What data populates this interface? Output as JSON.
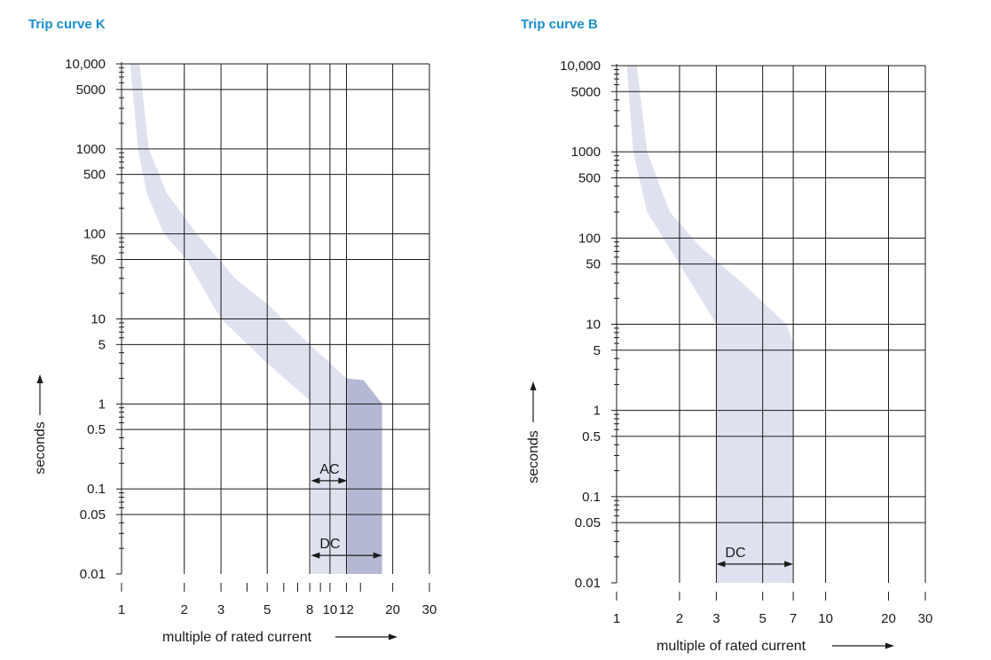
{
  "chart_data": [
    {
      "type": "area",
      "title": "Trip curve K",
      "xlabel": "multiple of rated current",
      "ylabel": "seconds",
      "x_scale": "log",
      "y_scale": "log",
      "xlim": [
        1,
        30
      ],
      "ylim": [
        0.01,
        10000
      ],
      "x_ticks": [
        1,
        2,
        3,
        5,
        8,
        10,
        12,
        20,
        30
      ],
      "x_tick_labels": [
        "1",
        "2",
        "3",
        "5",
        "8",
        "10",
        "12",
        "20",
        "30"
      ],
      "x_minor_ticks": [
        4,
        6,
        7,
        9,
        14
      ],
      "x_grid": [
        2,
        3,
        5,
        8,
        10,
        12,
        20,
        30
      ],
      "y_ticks": [
        10000,
        5000,
        1000,
        500,
        100,
        50,
        10,
        5,
        1,
        0.5,
        0.1,
        0.05,
        0.01
      ],
      "y_tick_labels": [
        "10,000",
        "5000",
        "1000",
        "500",
        "100",
        "50",
        "10",
        "5",
        "1",
        "0.5",
        "0.1",
        "0.05",
        "0.01"
      ],
      "y_grid": [
        10000,
        5000,
        1000,
        500,
        100,
        50,
        10,
        5,
        1,
        0.5,
        0.1,
        0.05
      ],
      "grid": true,
      "series": [
        {
          "name": "AC",
          "lower": {
            "x": [
              1.1,
              1.2,
              1.32,
              1.6,
              2.05,
              3.0,
              5.0,
              8.0,
              8.1,
              8.1
            ],
            "y": [
              10000,
              1000,
              300,
              100,
              50,
              10,
              3,
              1.1,
              0.9,
              0.01
            ]
          },
          "upper": {
            "x": [
              1.22,
              1.35,
              1.65,
              2.3,
              3.5,
              5.0,
              8.0,
              12.0,
              12.1,
              12.1
            ],
            "y": [
              10000,
              1000,
              300,
              100,
              30,
              15,
              5,
              2.0,
              1.5,
              0.01
            ]
          },
          "color": "#dfe2ee"
        },
        {
          "name": "DC",
          "lower": {
            "x": [
              12.0,
              12.0,
              12.1,
              12.1
            ],
            "y": [
              2.0,
              1.9,
              1.5,
              0.01
            ]
          },
          "upper": {
            "x": [
              12.0,
              14.5,
              17.8,
              17.8
            ],
            "y": [
              2.0,
              1.9,
              1.0,
              0.01
            ]
          },
          "color": "#b4b8d3"
        }
      ],
      "annotations": [
        {
          "text": "AC",
          "x_from": 8.1,
          "x_to": 12.1,
          "y": 0.125
        },
        {
          "text": "DC",
          "x_from": 8.1,
          "x_to": 17.8,
          "y": 0.0165
        }
      ]
    },
    {
      "type": "area",
      "title": "Trip curve B",
      "xlabel": "multiple of rated current",
      "ylabel": "seconds",
      "x_scale": "log",
      "y_scale": "log",
      "xlim": [
        1,
        30
      ],
      "ylim": [
        0.01,
        10000
      ],
      "x_ticks": [
        1,
        2,
        3,
        5,
        7,
        10,
        20,
        30
      ],
      "x_tick_labels": [
        "1",
        "2",
        "3",
        "5",
        "7",
        "10",
        "20",
        "30"
      ],
      "x_grid": [
        2,
        3,
        5,
        7,
        10,
        20,
        30
      ],
      "y_ticks": [
        10000,
        5000,
        1000,
        500,
        100,
        50,
        10,
        5,
        1,
        0.5,
        0.1,
        0.05,
        0.01
      ],
      "y_tick_labels": [
        "10,000",
        "5000",
        "1000",
        "500",
        "100",
        "50",
        "10",
        "5",
        "1",
        "0.5",
        "0.1",
        "0.05",
        "0.01"
      ],
      "y_grid": [
        10000,
        5000,
        1000,
        500,
        100,
        50,
        10,
        5,
        1,
        0.5,
        0.1,
        0.05
      ],
      "grid": true,
      "series": [
        {
          "name": "DC",
          "lower": {
            "x": [
              1.12,
              1.2,
              1.4,
              2.0,
              3.0,
              3.0
            ],
            "y": [
              10000,
              1000,
              200,
              50,
              10,
              0.01
            ]
          },
          "upper": {
            "x": [
              1.25,
              1.4,
              1.8,
              2.5,
              4.0,
              6.5,
              7.0,
              7.0
            ],
            "y": [
              10000,
              1000,
              200,
              80,
              30,
              10,
              6,
              0.01
            ]
          },
          "color": "#dfe2ee"
        }
      ],
      "annotations": [
        {
          "text": "DC",
          "x_from": 3.0,
          "x_to": 7.0,
          "y": 0.0165
        }
      ]
    }
  ]
}
